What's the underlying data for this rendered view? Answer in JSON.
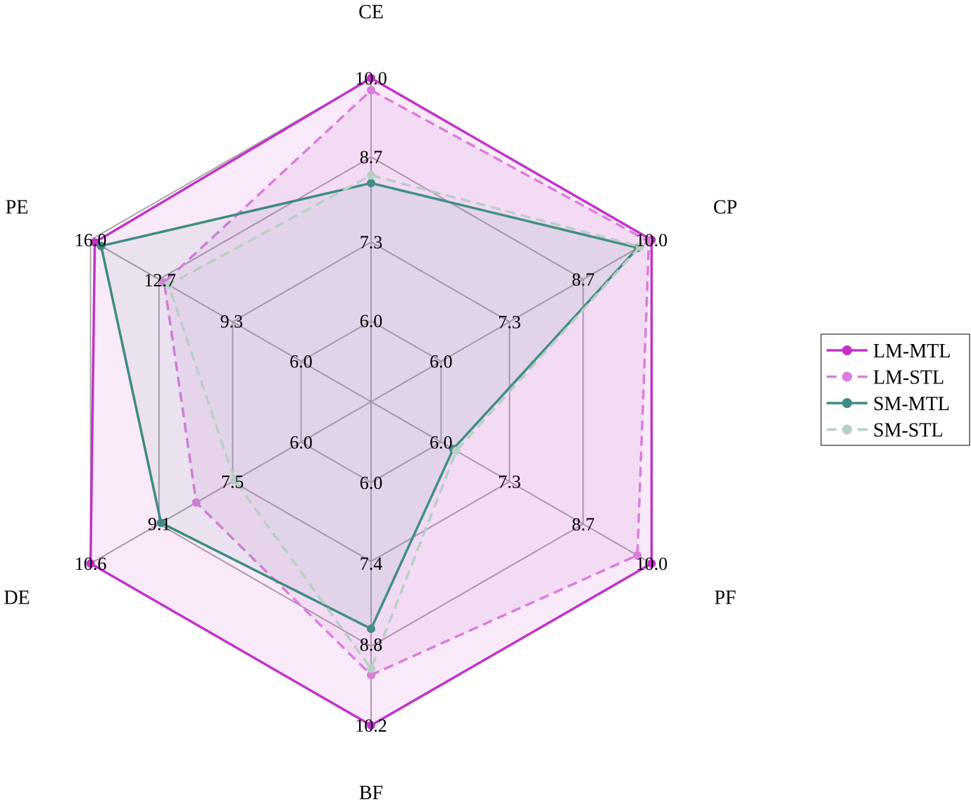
{
  "chart_data": {
    "type": "radar",
    "axes": [
      {
        "label": "CE",
        "ticks": [
          "6.0",
          "7.3",
          "8.7",
          "10.0"
        ],
        "range": [
          4.67,
          10.0
        ]
      },
      {
        "label": "CP",
        "ticks": [
          "6.0",
          "7.3",
          "8.7",
          "10.0"
        ],
        "range": [
          4.67,
          10.0
        ]
      },
      {
        "label": "PF",
        "ticks": [
          "6.0",
          "7.3",
          "8.7",
          "10.0"
        ],
        "range": [
          4.67,
          10.0
        ]
      },
      {
        "label": "BF",
        "ticks": [
          "6.0",
          "7.4",
          "8.8",
          "10.2"
        ],
        "range": [
          4.6,
          10.2
        ]
      },
      {
        "label": "DE",
        "ticks": [
          "6.0",
          "7.5",
          "9.1",
          "10.6"
        ],
        "range": [
          4.47,
          10.6
        ]
      },
      {
        "label": "PE",
        "ticks": [
          "6.0",
          "9.3",
          "12.7",
          "16.0"
        ],
        "range": [
          2.67,
          16.0
        ]
      }
    ],
    "series": [
      {
        "name": "LM-MTL",
        "color": "#c133c8",
        "dashed": false,
        "fill_opacity": 0.1,
        "values": [
          10.0,
          10.0,
          10.0,
          10.2,
          10.6,
          15.8
        ]
      },
      {
        "name": "LM-STL",
        "color": "#da7ed9",
        "dashed": true,
        "fill_opacity": 0.13,
        "values": [
          9.8,
          9.95,
          9.73,
          9.33,
          8.29,
          12.5
        ]
      },
      {
        "name": "SM-MTL",
        "color": "#3f8a82",
        "dashed": false,
        "fill_opacity": 0.08,
        "values": [
          8.27,
          9.74,
          6.23,
          8.53,
          9.06,
          15.5
        ]
      },
      {
        "name": "SM-STL",
        "color": "#b8cfc3",
        "dashed": true,
        "fill_opacity": 0.05,
        "values": [
          8.4,
          9.78,
          6.29,
          9.22,
          7.45,
          12.3
        ]
      }
    ],
    "grid": true,
    "legend": "right"
  }
}
